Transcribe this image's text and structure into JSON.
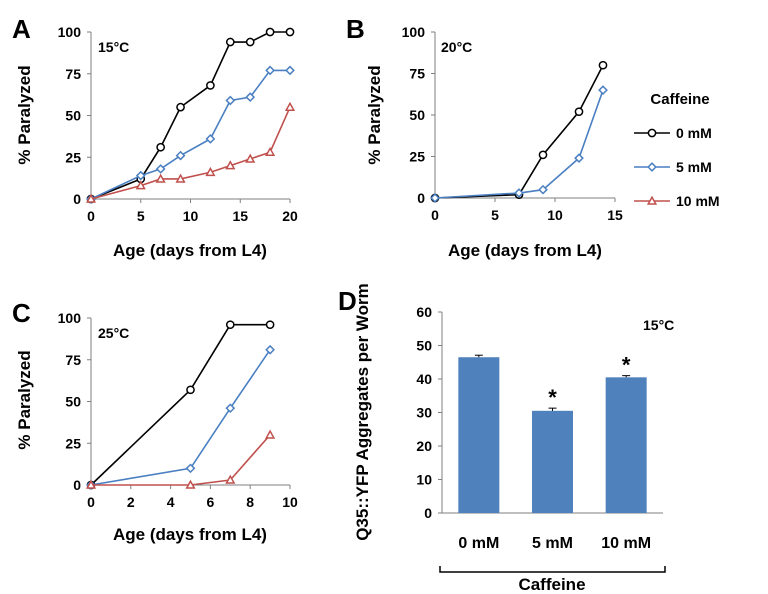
{
  "colors": {
    "series_0mM": "#000000",
    "series_5mM": "#4a7fc1",
    "series_10mM": "#c0504d",
    "bar_fill": "#4f81bd",
    "axis": "#7f7f7f"
  },
  "legend": {
    "title": "Caffeine",
    "entries": [
      {
        "label": "0 mM",
        "marker": "circle",
        "color": "#000000"
      },
      {
        "label": "5 mM",
        "marker": "diamond",
        "color": "#4a7fc1"
      },
      {
        "label": "10 mM",
        "marker": "triangle",
        "color": "#c0504d"
      }
    ]
  },
  "chart_data": [
    {
      "panel": "A",
      "type": "line",
      "condition": "15°C",
      "xlabel": "Age (days from L4)",
      "ylabel": "% Paralyzed",
      "xlim": [
        0,
        20
      ],
      "ylim": [
        0,
        100
      ],
      "xticks": [
        "0",
        "5",
        "10",
        "15",
        "20"
      ],
      "yticks": [
        "0",
        "25",
        "50",
        "75",
        "100"
      ],
      "series": [
        {
          "name": "0 mM",
          "color": "#000000",
          "marker": "circle",
          "x": [
            0,
            5,
            7,
            9,
            12,
            14,
            16,
            18,
            20
          ],
          "y": [
            0,
            12,
            31,
            55,
            68,
            94,
            94,
            100,
            100
          ]
        },
        {
          "name": "5 mM",
          "color": "#4a7fc1",
          "marker": "diamond",
          "x": [
            0,
            5,
            7,
            9,
            12,
            14,
            16,
            18,
            20
          ],
          "y": [
            0,
            14,
            18,
            26,
            36,
            59,
            61,
            77,
            77
          ]
        },
        {
          "name": "10 mM",
          "color": "#c0504d",
          "marker": "triangle",
          "x": [
            0,
            5,
            7,
            9,
            12,
            14,
            16,
            18,
            20
          ],
          "y": [
            0,
            8,
            12,
            12,
            16,
            20,
            24,
            28,
            55
          ]
        }
      ]
    },
    {
      "panel": "B",
      "type": "line",
      "condition": "20°C",
      "xlabel": "Age (days from L4)",
      "ylabel": "% Paralyzed",
      "xlim": [
        0,
        15
      ],
      "ylim": [
        0,
        100
      ],
      "xticks": [
        "0",
        "5",
        "10",
        "15"
      ],
      "yticks": [
        "0",
        "25",
        "50",
        "75",
        "100"
      ],
      "series": [
        {
          "name": "0 mM",
          "color": "#000000",
          "marker": "circle",
          "x": [
            0,
            7,
            9,
            12,
            14
          ],
          "y": [
            0,
            2,
            26,
            52,
            80
          ]
        },
        {
          "name": "5 mM",
          "color": "#4a7fc1",
          "marker": "diamond",
          "x": [
            0,
            7,
            9,
            12,
            14
          ],
          "y": [
            0,
            3,
            5,
            24,
            65
          ]
        }
      ]
    },
    {
      "panel": "C",
      "type": "line",
      "condition": "25°C",
      "xlabel": "Age (days from L4)",
      "ylabel": "% Paralyzed",
      "xlim": [
        0,
        10
      ],
      "ylim": [
        0,
        100
      ],
      "xticks": [
        "0",
        "2",
        "4",
        "6",
        "8",
        "10"
      ],
      "yticks": [
        "0",
        "25",
        "50",
        "75",
        "100"
      ],
      "series": [
        {
          "name": "0 mM",
          "color": "#000000",
          "marker": "circle",
          "x": [
            0,
            5,
            7,
            9
          ],
          "y": [
            0,
            57,
            96,
            96
          ]
        },
        {
          "name": "5 mM",
          "color": "#4a7fc1",
          "marker": "diamond",
          "x": [
            0,
            5,
            7,
            9
          ],
          "y": [
            0,
            10,
            46,
            81
          ]
        },
        {
          "name": "10 mM",
          "color": "#c0504d",
          "marker": "triangle",
          "x": [
            0,
            5,
            7,
            9
          ],
          "y": [
            0,
            0,
            3,
            30
          ]
        }
      ]
    },
    {
      "panel": "D",
      "type": "bar",
      "condition": "15°C",
      "ylabel": "Q35::YFP Aggregates per Worm",
      "xlabel": "Caffeine",
      "ylim": [
        0,
        60
      ],
      "yticks": [
        "0",
        "10",
        "20",
        "30",
        "40",
        "50",
        "60"
      ],
      "categories": [
        "0 mM",
        "5 mM",
        "10 mM"
      ],
      "values": [
        46.5,
        30.5,
        40.5
      ],
      "errors": [
        0.6,
        0.8,
        0.5
      ],
      "annotations": [
        "",
        "*",
        "*"
      ]
    }
  ]
}
